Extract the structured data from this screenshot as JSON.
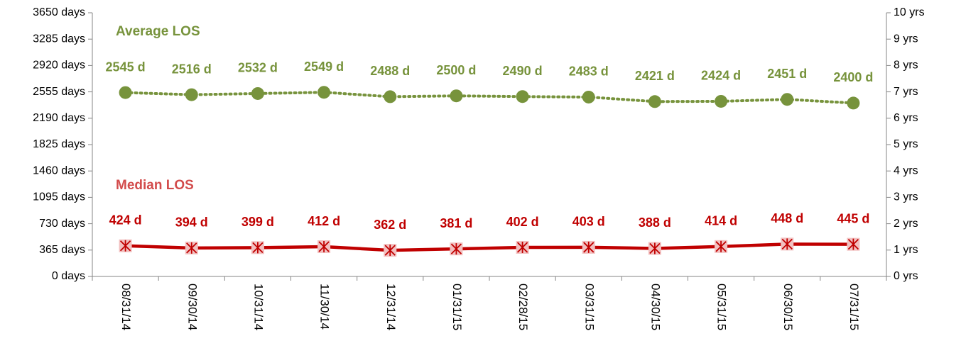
{
  "chart_data": {
    "type": "line",
    "categories": [
      "08/31/14",
      "09/30/14",
      "10/31/14",
      "11/30/14",
      "12/31/14",
      "01/31/15",
      "02/28/15",
      "03/31/15",
      "04/30/15",
      "05/31/15",
      "06/30/15",
      "07/31/15"
    ],
    "series": [
      {
        "name": "Average LOS",
        "color": "#77933c",
        "dash": "dotted",
        "values": [
          2545,
          2516,
          2532,
          2549,
          2488,
          2500,
          2490,
          2483,
          2421,
          2424,
          2451,
          2400
        ],
        "value_labels": [
          "2545 d",
          "2516 d",
          "2532 d",
          "2549 d",
          "2488 d",
          "2500 d",
          "2490 d",
          "2483 d",
          "2421 d",
          "2424 d",
          "2451 d",
          "2400 d"
        ]
      },
      {
        "name": "Median LOS",
        "color": "#c00000",
        "dash": "solid",
        "values": [
          424,
          394,
          399,
          412,
          362,
          381,
          402,
          403,
          388,
          414,
          448,
          445
        ],
        "value_labels": [
          "424 d",
          "394 d",
          "399 d",
          "412 d",
          "362 d",
          "381 d",
          "402 d",
          "403 d",
          "388 d",
          "414 d",
          "448 d",
          "445 d"
        ]
      }
    ],
    "ylim": [
      0,
      3650
    ],
    "yticks": [
      {
        "value": 0,
        "label": "0 days"
      },
      {
        "value": 365,
        "label": "365 days"
      },
      {
        "value": 730,
        "label": "730 days"
      },
      {
        "value": 1095,
        "label": "1095 days"
      },
      {
        "value": 1460,
        "label": "1460 days"
      },
      {
        "value": 1825,
        "label": "1825 days"
      },
      {
        "value": 2190,
        "label": "2190 days"
      },
      {
        "value": 2555,
        "label": "2555 days"
      },
      {
        "value": 2920,
        "label": "2920 days"
      },
      {
        "value": 3285,
        "label": "3285 days"
      },
      {
        "value": 3650,
        "label": "3650 days"
      }
    ],
    "y2lim": [
      0,
      10
    ],
    "y2ticks": [
      {
        "value": 0,
        "label": "0 yrs"
      },
      {
        "value": 1,
        "label": "1 yrs"
      },
      {
        "value": 2,
        "label": "2 yrs"
      },
      {
        "value": 3,
        "label": "3 yrs"
      },
      {
        "value": 4,
        "label": "4 yrs"
      },
      {
        "value": 5,
        "label": "5 yrs"
      },
      {
        "value": 6,
        "label": "6 yrs"
      },
      {
        "value": 7,
        "label": "7 yrs"
      },
      {
        "value": 8,
        "label": "8 yrs"
      },
      {
        "value": 9,
        "label": "9 yrs"
      },
      {
        "value": 10,
        "label": "10 yrs"
      }
    ]
  }
}
